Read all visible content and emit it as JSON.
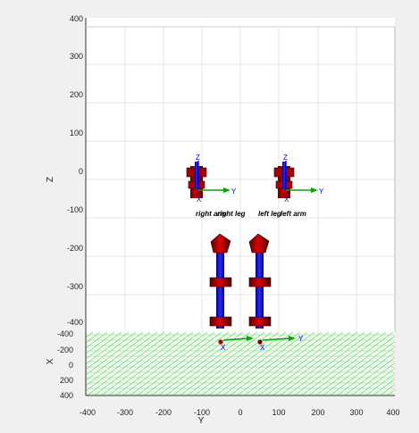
{
  "plot": {
    "z_axis_label": "Z",
    "x_axis_label": "X",
    "y_axis_label": "Y",
    "z_ticks": [
      "400",
      "300",
      "200",
      "100",
      "0",
      "-100",
      "-200",
      "-300",
      "-400"
    ],
    "y_ticks": [
      "-400",
      "-300",
      "-200",
      "-100",
      "0",
      "100",
      "200",
      "300",
      "400"
    ],
    "x_ticks": [
      "-400",
      "-200",
      "0",
      "200",
      "400"
    ],
    "segment_labels": {
      "right_arm": "right arm",
      "right_leg": "right leg",
      "left_leg": "left leg",
      "left_arm": "left arm"
    },
    "frame_labels": {
      "x": "X",
      "y": "Y",
      "z": "Z"
    },
    "colors": {
      "background": "#ffffff",
      "figure_bg": "#f0f0f0",
      "grid": "#e6e6e6",
      "floor": "#00dd00",
      "segment_red": "#c00000",
      "segment_dark": "#2a0000",
      "bone_blue": "#0000cc",
      "axis_x": "#0000ff",
      "axis_y": "#00aa00",
      "axis_z": "#0000ff"
    }
  }
}
